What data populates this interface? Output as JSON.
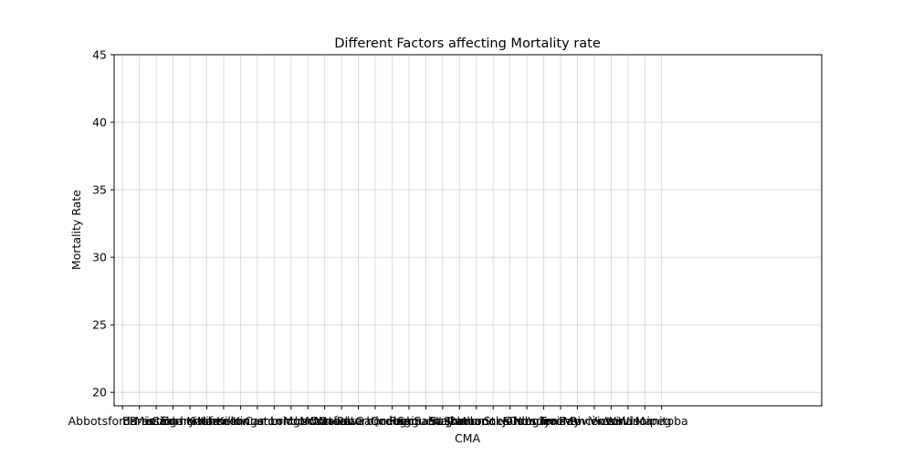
{
  "chart_data": {
    "type": "line",
    "title": "Different Factors affecting Mortality rate",
    "xlabel": "CMA",
    "ylabel": "Mortality Rate",
    "ylim": [
      19,
      45
    ],
    "yticks": [
      20,
      25,
      30,
      35,
      40,
      45
    ],
    "grid": true,
    "x_tick_count": 33,
    "x_axis_slots": 42,
    "categories": [
      "Abbotsford-Mission",
      "Barrie",
      "Brantford",
      "Calgary",
      "Edmonton",
      "Halifax",
      "Hamilton",
      "Kelowna",
      "Kingston",
      "Kitchener-Cambridge-Waterloo",
      "London",
      "Moncton",
      "Montréal",
      "Oshawa",
      "Ottawa-Gatineau",
      "Peterborough",
      "Québec",
      "Regina",
      "Saguenay",
      "Saint John",
      "Saskatoon",
      "Sherbrooke",
      "St. Catharines-Niagara",
      "St. John's",
      "Sudbury",
      "Thunder Bay",
      "Toronto",
      "Trois-Rivières",
      "Vancouver",
      "Victoria",
      "Windsor",
      "Winnipeg",
      "Manitoba"
    ],
    "series": []
  },
  "colors": {
    "axis": "#000000",
    "grid": "#b0b0b0",
    "background": "#ffffff"
  }
}
